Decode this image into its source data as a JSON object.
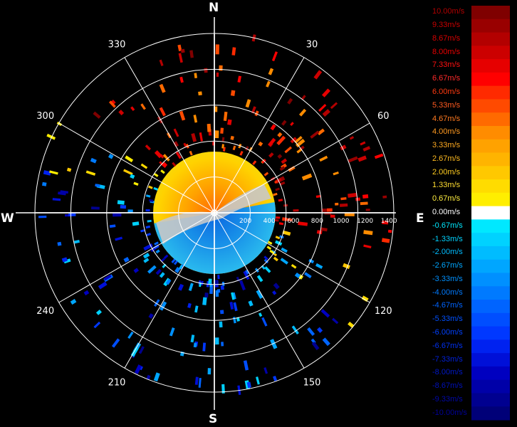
{
  "chart_data": {
    "type": "polar-radar-ppi",
    "title": "",
    "compass": {
      "north": "N",
      "east": "E",
      "south": "S",
      "west": "W"
    },
    "azimuth_labels": [
      {
        "deg": 30,
        "text": "30"
      },
      {
        "deg": 60,
        "text": "60"
      },
      {
        "deg": 120,
        "text": "120"
      },
      {
        "deg": 150,
        "text": "150"
      },
      {
        "deg": 210,
        "text": "210"
      },
      {
        "deg": 240,
        "text": "240"
      },
      {
        "deg": 300,
        "text": "300"
      },
      {
        "deg": 330,
        "text": "330"
      }
    ],
    "range_ticks": [
      "200",
      "400",
      "600",
      "800",
      "1000",
      "1200",
      "1400"
    ],
    "range_max": 1500,
    "grid": true,
    "velocity_colorbar": {
      "unit": "m/s",
      "entries": [
        {
          "label": "10.00m/s",
          "color": "#7f0000",
          "text": "#b00000"
        },
        {
          "label": "9.33m/s",
          "color": "#990000",
          "text": "#c80000"
        },
        {
          "label": "8.67m/s",
          "color": "#b30000",
          "text": "#d80000"
        },
        {
          "label": "8.00m/s",
          "color": "#cc0000",
          "text": "#e80000"
        },
        {
          "label": "7.33m/s",
          "color": "#e60000",
          "text": "#ff1010"
        },
        {
          "label": "6.67m/s",
          "color": "#ff0000",
          "text": "#ff2a2a"
        },
        {
          "label": "6.00m/s",
          "color": "#ff2a00",
          "text": "#ff3a10"
        },
        {
          "label": "5.33m/s",
          "color": "#ff4a00",
          "text": "#ff5a20"
        },
        {
          "label": "4.67m/s",
          "color": "#ff6a00",
          "text": "#ff7a20"
        },
        {
          "label": "4.00m/s",
          "color": "#ff8c00",
          "text": "#ff9a20"
        },
        {
          "label": "3.33m/s",
          "color": "#ffa200",
          "text": "#ffaa20"
        },
        {
          "label": "2.67m/s",
          "color": "#ffb400",
          "text": "#ffbb20"
        },
        {
          "label": "2.00m/s",
          "color": "#ffc800",
          "text": "#ffcc20"
        },
        {
          "label": "1.33m/s",
          "color": "#ffdc00",
          "text": "#ffdd30"
        },
        {
          "label": "0.67m/s",
          "color": "#ffee00",
          "text": "#ffee40"
        },
        {
          "label": "0.00m/s",
          "color": "#ffffff",
          "text": "#ffffff"
        },
        {
          "label": "-0.67m/s",
          "color": "#00e8ff",
          "text": "#00e8ff"
        },
        {
          "label": "-1.33m/s",
          "color": "#00d2ff",
          "text": "#00d2ff"
        },
        {
          "label": "-2.00m/s",
          "color": "#00bcff",
          "text": "#00bcff"
        },
        {
          "label": "-2.67m/s",
          "color": "#00a6ff",
          "text": "#00a6ff"
        },
        {
          "label": "-3.33m/s",
          "color": "#0090ff",
          "text": "#0090ff"
        },
        {
          "label": "-4.00m/s",
          "color": "#007aff",
          "text": "#007aff"
        },
        {
          "label": "-4.67m/s",
          "color": "#0064ff",
          "text": "#0064ff"
        },
        {
          "label": "-5.33m/s",
          "color": "#004eff",
          "text": "#0050ff"
        },
        {
          "label": "-6.00m/s",
          "color": "#0038ff",
          "text": "#0040ff"
        },
        {
          "label": "-6.67m/s",
          "color": "#0022f0",
          "text": "#0030f0"
        },
        {
          "label": "-7.33m/s",
          "color": "#0010d8",
          "text": "#0020d8"
        },
        {
          "label": "-8.00m/s",
          "color": "#0000c0",
          "text": "#0018c8"
        },
        {
          "label": "-8.67m/s",
          "color": "#0000a8",
          "text": "#0010b8"
        },
        {
          "label": "-9.33m/s",
          "color": "#000090",
          "text": "#0008a8"
        },
        {
          "label": "-10.00m/s",
          "color": "#000078",
          "text": "#000098"
        }
      ]
    },
    "central_echo_radius": 850
  }
}
